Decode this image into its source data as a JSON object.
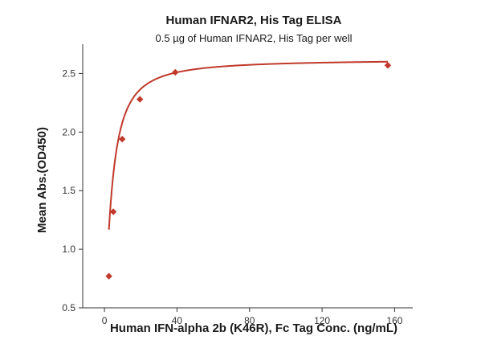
{
  "chart_data": {
    "type": "scatter",
    "title": "Human IFNAR2, His Tag ELISA",
    "subtitle": "0.5 µg of Human IFNAR2, His Tag per well",
    "xlabel": "Human IFN-alpha 2b (K46R), Fc Tag Conc. (ng/mL)",
    "ylabel": "Mean Abs.(OD450)",
    "xlim": [
      -12,
      170
    ],
    "ylim": [
      0.5,
      2.75
    ],
    "x_ticks": [
      "0",
      "40",
      "80",
      "120",
      "160"
    ],
    "y_ticks": [
      "0.5",
      "1.0",
      "1.5",
      "2.0",
      "2.5"
    ],
    "grid": false,
    "colors": {
      "series": "#c0392b"
    },
    "series": [
      {
        "x": [
          2.44,
          4.88,
          9.77,
          19.53,
          39.06,
          156.25
        ],
        "y": [
          0.77,
          1.32,
          1.94,
          2.28,
          2.51,
          2.57
        ]
      }
    ],
    "fit": {
      "type": "4PL",
      "bottom": 0.45,
      "top": 2.62,
      "ec50": 4.2,
      "hill": 1.3
    }
  }
}
